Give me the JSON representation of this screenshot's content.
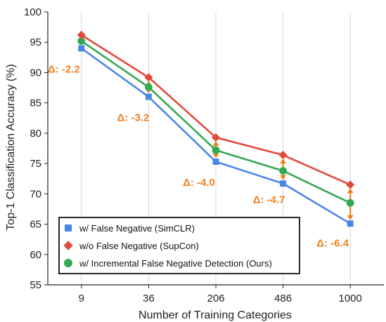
{
  "chart_data": {
    "type": "line",
    "categories": [
      "9",
      "36",
      "206",
      "486",
      "1000"
    ],
    "xlabel": "Number of Training Categories",
    "ylabel": "Top-1 Classification Accuracy (%)",
    "ylim": [
      55,
      100
    ],
    "yticks": [
      55,
      60,
      65,
      70,
      75,
      80,
      85,
      90,
      95,
      100
    ],
    "grid": "vertical",
    "legend_position": "bottom-left",
    "series": [
      {
        "name": "w/   False Negative (SimCLR)",
        "values": [
          94.0,
          86.0,
          75.3,
          71.7,
          65.1
        ],
        "color": "#4a86e8",
        "marker": "square"
      },
      {
        "name": "w/o False Negative (SupCon)",
        "values": [
          96.2,
          89.2,
          79.3,
          76.4,
          71.5
        ],
        "color": "#e24b3b",
        "marker": "diamond"
      },
      {
        "name": "w/   Incremental False Negative Detection (Ours)",
        "values": [
          95.2,
          87.6,
          77.2,
          73.8,
          68.5
        ],
        "color": "#34a853",
        "marker": "circle"
      }
    ],
    "annotations": [
      {
        "category": "9",
        "text": "Δ: -2.2",
        "y": 90
      },
      {
        "category": "36",
        "text": "Δ: -3.2",
        "y": 82
      },
      {
        "category": "206",
        "text": "Δ: -4.0",
        "y": 71.3
      },
      {
        "category": "486",
        "text": "Δ: -4.7",
        "y": 68.5
      },
      {
        "category": "1000",
        "text": "Δ: -6.4",
        "y": 61.3
      }
    ],
    "annotation_color": "#f0821e"
  }
}
